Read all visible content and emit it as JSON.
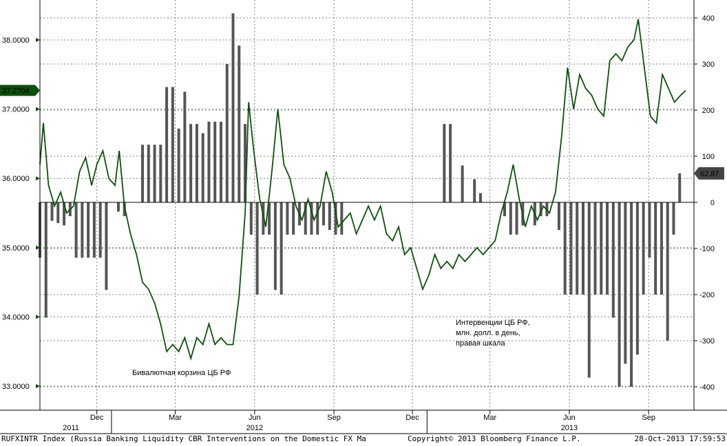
{
  "chart_data": {
    "type": "line+bar",
    "left_axis": {
      "ylim": [
        32.85,
        38.4
      ],
      "ticks": [
        "33.0000",
        "34.0000",
        "35.0000",
        "36.0000",
        "37.0000",
        "38.0000"
      ],
      "tick_values": [
        33,
        34,
        35,
        36,
        37,
        38
      ],
      "current_value_label": "37.2704",
      "current_value": 37.2704
    },
    "right_axis": {
      "ylim": [
        -440,
        408
      ],
      "ticks": [
        "400",
        "300",
        "200",
        "100",
        "0",
        "-100",
        "-200",
        "-300",
        "-400"
      ],
      "tick_values": [
        400,
        300,
        200,
        100,
        0,
        -100,
        -200,
        -300,
        -400
      ],
      "current_value_label": "62.87",
      "current_value": 62.87
    },
    "x_axis": {
      "start": "2011-10-10",
      "end": "2013-10-28",
      "month_ticks": [
        "Dec",
        "Mar",
        "Jun",
        "Sep",
        "Dec",
        "Mar",
        "Jun",
        "Sep"
      ],
      "month_tick_dates": [
        "2011-12-15",
        "2012-03-15",
        "2012-06-15",
        "2012-09-15",
        "2012-12-15",
        "2013-03-15",
        "2013-06-15",
        "2013-09-15"
      ],
      "year_labels": [
        "2011",
        "2012",
        "2013"
      ],
      "year_label_dates": [
        "2011-11-15",
        "2012-06-15",
        "2013-06-15"
      ]
    },
    "grid": true,
    "annotations": {
      "basket": "Бивалютная корзина ЦБ РФ",
      "interventions": [
        "Интервенции ЦБ РФ,",
        "млн. долл. в день,",
        "правая шкала"
      ]
    },
    "basket_series": [
      [
        "2011-10-10",
        36.2
      ],
      [
        "2011-10-14",
        36.8
      ],
      [
        "2011-10-20",
        35.9
      ],
      [
        "2011-10-27",
        35.6
      ],
      [
        "2011-11-03",
        35.8
      ],
      [
        "2011-11-10",
        35.5
      ],
      [
        "2011-11-18",
        35.6
      ],
      [
        "2011-11-25",
        36.1
      ],
      [
        "2011-12-02",
        36.3
      ],
      [
        "2011-12-09",
        35.9
      ],
      [
        "2011-12-15",
        36.2
      ],
      [
        "2011-12-22",
        36.4
      ],
      [
        "2011-12-29",
        36.0
      ],
      [
        "2012-01-05",
        35.9
      ],
      [
        "2012-01-10",
        36.4
      ],
      [
        "2012-01-16",
        35.6
      ],
      [
        "2012-01-23",
        35.2
      ],
      [
        "2012-01-30",
        34.9
      ],
      [
        "2012-02-06",
        34.5
      ],
      [
        "2012-02-13",
        34.4
      ],
      [
        "2012-02-20",
        34.2
      ],
      [
        "2012-02-27",
        33.9
      ],
      [
        "2012-03-05",
        33.5
      ],
      [
        "2012-03-12",
        33.6
      ],
      [
        "2012-03-19",
        33.5
      ],
      [
        "2012-03-26",
        33.7
      ],
      [
        "2012-04-02",
        33.4
      ],
      [
        "2012-04-09",
        33.7
      ],
      [
        "2012-04-16",
        33.6
      ],
      [
        "2012-04-23",
        33.9
      ],
      [
        "2012-04-30",
        33.6
      ],
      [
        "2012-05-07",
        33.7
      ],
      [
        "2012-05-14",
        33.6
      ],
      [
        "2012-05-21",
        33.6
      ],
      [
        "2012-05-28",
        34.3
      ],
      [
        "2012-06-04",
        35.5
      ],
      [
        "2012-06-08",
        37.1
      ],
      [
        "2012-06-14",
        36.4
      ],
      [
        "2012-06-21",
        35.7
      ],
      [
        "2012-06-28",
        35.3
      ],
      [
        "2012-07-05",
        36.1
      ],
      [
        "2012-07-12",
        37.0
      ],
      [
        "2012-07-19",
        36.2
      ],
      [
        "2012-07-26",
        36.0
      ],
      [
        "2012-08-02",
        35.6
      ],
      [
        "2012-08-09",
        35.4
      ],
      [
        "2012-08-16",
        35.7
      ],
      [
        "2012-08-23",
        35.4
      ],
      [
        "2012-08-30",
        35.6
      ],
      [
        "2012-09-06",
        36.1
      ],
      [
        "2012-09-13",
        35.8
      ],
      [
        "2012-09-20",
        35.3
      ],
      [
        "2012-09-27",
        35.4
      ],
      [
        "2012-10-04",
        35.5
      ],
      [
        "2012-10-11",
        35.2
      ],
      [
        "2012-10-18",
        35.4
      ],
      [
        "2012-10-25",
        35.6
      ],
      [
        "2012-11-01",
        35.4
      ],
      [
        "2012-11-08",
        35.6
      ],
      [
        "2012-11-15",
        35.2
      ],
      [
        "2012-11-22",
        35.1
      ],
      [
        "2012-11-29",
        35.3
      ],
      [
        "2012-12-06",
        34.9
      ],
      [
        "2012-12-13",
        35.0
      ],
      [
        "2012-12-20",
        34.7
      ],
      [
        "2012-12-27",
        34.4
      ],
      [
        "2013-01-03",
        34.6
      ],
      [
        "2013-01-10",
        34.9
      ],
      [
        "2013-01-17",
        34.7
      ],
      [
        "2013-01-24",
        34.8
      ],
      [
        "2013-01-31",
        34.7
      ],
      [
        "2013-02-07",
        34.9
      ],
      [
        "2013-02-14",
        34.8
      ],
      [
        "2013-02-21",
        34.9
      ],
      [
        "2013-02-28",
        35.0
      ],
      [
        "2013-03-07",
        34.9
      ],
      [
        "2013-03-14",
        35.0
      ],
      [
        "2013-03-21",
        35.1
      ],
      [
        "2013-03-28",
        35.5
      ],
      [
        "2013-04-04",
        35.8
      ],
      [
        "2013-04-11",
        36.2
      ],
      [
        "2013-04-18",
        35.7
      ],
      [
        "2013-04-25",
        35.3
      ],
      [
        "2013-05-02",
        35.6
      ],
      [
        "2013-05-09",
        35.4
      ],
      [
        "2013-05-16",
        35.6
      ],
      [
        "2013-05-23",
        35.5
      ],
      [
        "2013-05-30",
        35.8
      ],
      [
        "2013-06-06",
        36.6
      ],
      [
        "2013-06-13",
        37.6
      ],
      [
        "2013-06-20",
        37.0
      ],
      [
        "2013-06-27",
        37.5
      ],
      [
        "2013-07-04",
        37.3
      ],
      [
        "2013-07-11",
        37.2
      ],
      [
        "2013-07-18",
        37.0
      ],
      [
        "2013-07-25",
        36.9
      ],
      [
        "2013-08-01",
        37.7
      ],
      [
        "2013-08-08",
        37.8
      ],
      [
        "2013-08-15",
        37.7
      ],
      [
        "2013-08-22",
        37.9
      ],
      [
        "2013-08-29",
        38.0
      ],
      [
        "2013-09-03",
        38.3
      ],
      [
        "2013-09-10",
        37.6
      ],
      [
        "2013-09-17",
        36.9
      ],
      [
        "2013-09-24",
        36.8
      ],
      [
        "2013-10-01",
        37.5
      ],
      [
        "2013-10-08",
        37.3
      ],
      [
        "2013-10-15",
        37.1
      ],
      [
        "2013-10-22",
        37.2
      ],
      [
        "2013-10-28",
        37.27
      ]
    ],
    "interventions_series": [
      [
        "2011-10-10",
        -120
      ],
      [
        "2011-10-17",
        -250
      ],
      [
        "2011-10-24",
        -40
      ],
      [
        "2011-10-31",
        -45
      ],
      [
        "2011-11-07",
        -50
      ],
      [
        "2011-11-14",
        -30
      ],
      [
        "2011-11-21",
        -120
      ],
      [
        "2011-11-28",
        -120
      ],
      [
        "2011-12-05",
        -120
      ],
      [
        "2011-12-12",
        -120
      ],
      [
        "2011-12-19",
        -120
      ],
      [
        "2011-12-26",
        -190
      ],
      [
        "2012-01-09",
        -20
      ],
      [
        "2012-01-16",
        -30
      ],
      [
        "2012-01-23",
        0
      ],
      [
        "2012-01-30",
        0
      ],
      [
        "2012-02-06",
        125
      ],
      [
        "2012-02-13",
        125
      ],
      [
        "2012-02-20",
        125
      ],
      [
        "2012-02-27",
        125
      ],
      [
        "2012-03-05",
        250
      ],
      [
        "2012-03-12",
        250
      ],
      [
        "2012-03-19",
        160
      ],
      [
        "2012-03-26",
        240
      ],
      [
        "2012-04-02",
        170
      ],
      [
        "2012-04-09",
        170
      ],
      [
        "2012-04-16",
        150
      ],
      [
        "2012-04-23",
        175
      ],
      [
        "2012-04-30",
        175
      ],
      [
        "2012-05-07",
        175
      ],
      [
        "2012-05-14",
        300
      ],
      [
        "2012-05-21",
        410
      ],
      [
        "2012-05-28",
        340
      ],
      [
        "2012-06-04",
        170
      ],
      [
        "2012-06-11",
        -70
      ],
      [
        "2012-06-18",
        -200
      ],
      [
        "2012-06-25",
        -70
      ],
      [
        "2012-07-02",
        -70
      ],
      [
        "2012-07-09",
        -190
      ],
      [
        "2012-07-16",
        -200
      ],
      [
        "2012-07-23",
        -70
      ],
      [
        "2012-07-30",
        -70
      ],
      [
        "2012-08-06",
        -50
      ],
      [
        "2012-08-13",
        -70
      ],
      [
        "2012-08-20",
        -70
      ],
      [
        "2012-08-27",
        -70
      ],
      [
        "2012-09-03",
        -50
      ],
      [
        "2012-09-10",
        -60
      ],
      [
        "2012-09-17",
        -70
      ],
      [
        "2012-09-24",
        -70
      ],
      [
        "2013-01-21",
        170
      ],
      [
        "2013-01-28",
        170
      ],
      [
        "2013-02-11",
        80
      ],
      [
        "2013-02-25",
        50
      ],
      [
        "2013-03-04",
        20
      ],
      [
        "2013-04-01",
        -30
      ],
      [
        "2013-04-08",
        -70
      ],
      [
        "2013-04-15",
        -70
      ],
      [
        "2013-04-22",
        -50
      ],
      [
        "2013-05-06",
        -50
      ],
      [
        "2013-05-13",
        -30
      ],
      [
        "2013-05-20",
        -30
      ],
      [
        "2013-06-03",
        -60
      ],
      [
        "2013-06-10",
        -200
      ],
      [
        "2013-06-17",
        -200
      ],
      [
        "2013-06-24",
        -200
      ],
      [
        "2013-07-01",
        -200
      ],
      [
        "2013-07-08",
        -380
      ],
      [
        "2013-07-15",
        -200
      ],
      [
        "2013-07-22",
        -200
      ],
      [
        "2013-07-29",
        -200
      ],
      [
        "2013-08-05",
        -250
      ],
      [
        "2013-08-12",
        -400
      ],
      [
        "2013-08-19",
        -350
      ],
      [
        "2013-08-26",
        -400
      ],
      [
        "2013-09-02",
        -330
      ],
      [
        "2013-09-09",
        -200
      ],
      [
        "2013-09-16",
        -120
      ],
      [
        "2013-09-23",
        -200
      ],
      [
        "2013-09-30",
        -200
      ],
      [
        "2013-10-07",
        -300
      ],
      [
        "2013-10-14",
        -70
      ],
      [
        "2013-10-21",
        63
      ]
    ]
  },
  "footer": {
    "left": "RUFXINTR Index (Russia Banking Liquidity CBR Interventions on the Domestic FX Ma",
    "center": "Copyright© 2013 Bloomberg Finance L.P.",
    "right": "28-Oct-2013  17:59:53"
  },
  "colors": {
    "line": "#0b4f0b",
    "bars": "#555555",
    "left_tag": "#0b4f0b",
    "right_tag": "#444444",
    "grid": "#7f7f7f"
  }
}
